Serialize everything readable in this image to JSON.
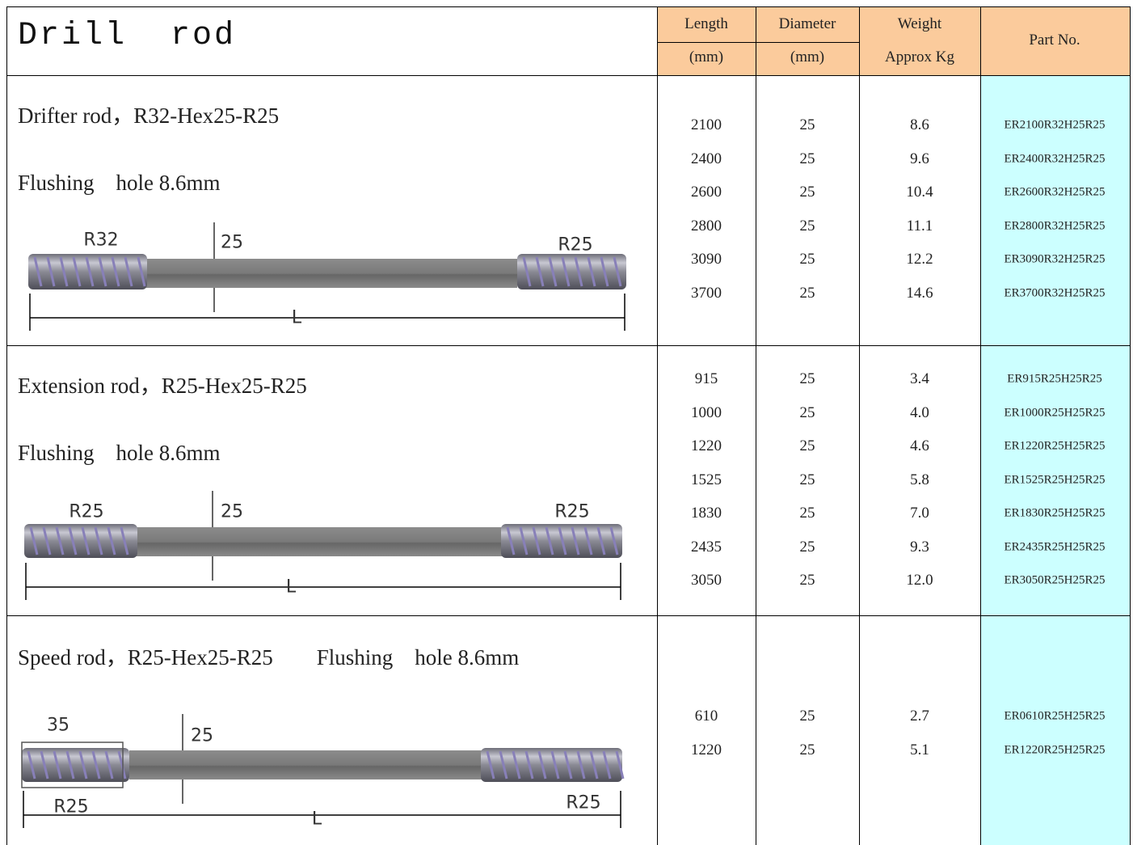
{
  "header": {
    "title": "Drill  rod",
    "length": {
      "top": "Length",
      "bottom": "(mm)"
    },
    "diameter": {
      "top": "Diameter",
      "bottom": "(mm)"
    },
    "weight": {
      "top": "Weight",
      "bottom": "Approx Kg"
    },
    "part_no": "Part No."
  },
  "sections": [
    {
      "lines": [
        "Drifter rod，R32-Hex25-R25",
        "Flushing　hole 8.6mm"
      ],
      "labels": [
        "R32",
        "25",
        "R25",
        "L"
      ],
      "rows": [
        [
          "2100",
          "25",
          "8.6",
          "ER2100R32H25R25"
        ],
        [
          "2400",
          "25",
          "9.6",
          "ER2400R32H25R25"
        ],
        [
          "2600",
          "25",
          "10.4",
          "ER2600R32H25R25"
        ],
        [
          "2800",
          "25",
          "11.1",
          "ER2800R32H25R25"
        ],
        [
          "3090",
          "25",
          "12.2",
          "ER3090R32H25R25"
        ],
        [
          "3700",
          "25",
          "14.6",
          "ER3700R32H25R25"
        ]
      ]
    },
    {
      "lines": [
        "Extension rod，R25-Hex25-R25",
        "Flushing　hole 8.6mm"
      ],
      "labels": [
        "R25",
        "25",
        "R25",
        "L"
      ],
      "rows": [
        [
          "915",
          "25",
          "3.4",
          "ER915R25H25R25"
        ],
        [
          "1000",
          "25",
          "4.0",
          "ER1000R25H25R25"
        ],
        [
          "1220",
          "25",
          "4.6",
          "ER1220R25H25R25"
        ],
        [
          "1525",
          "25",
          "5.8",
          "ER1525R25H25R25"
        ],
        [
          "1830",
          "25",
          "7.0",
          "ER1830R25H25R25"
        ],
        [
          "2435",
          "25",
          "9.3",
          "ER2435R25H25R25"
        ],
        [
          "3050",
          "25",
          "12.0",
          "ER3050R25H25R25"
        ]
      ]
    },
    {
      "lines": [
        "Speed rod，R25-Hex25-R25　　Flushing　hole 8.6mm"
      ],
      "labels": [
        "35",
        "25",
        "R25",
        "L",
        "R25"
      ],
      "rows": [
        [
          "610",
          "25",
          "2.7",
          "ER0610R25H25R25"
        ],
        [
          "1220",
          "25",
          "5.1",
          "ER1220R25H25R25"
        ]
      ]
    }
  ]
}
